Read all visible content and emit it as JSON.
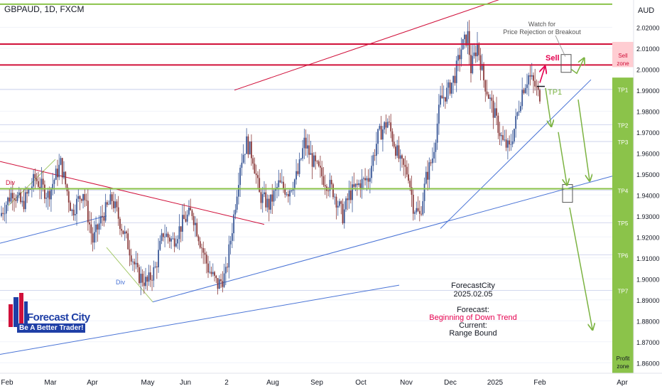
{
  "header": {
    "symbol_line": "GBPAUD, 1D, FXCM",
    "currency": "AUD"
  },
  "brand": {
    "name": "Forecast City",
    "tagline": "Be A Better Trader!"
  },
  "info_box": {
    "author": "ForecastCity",
    "date": "2025.02.05",
    "forecast_label": "Forecast:",
    "forecast_value": "Beginning of Down Trend",
    "current_label": "Current:",
    "current_value": "Range Bound"
  },
  "annotations": {
    "watch": [
      "Watch for",
      "Price Rejection or Breakout"
    ],
    "sell": "Sell",
    "tp1": "TP1",
    "div_top": "Div",
    "div_bottom": "Div",
    "sell_zone": [
      "Sell",
      "zone"
    ],
    "profit_zone": [
      "Profit",
      "zone"
    ]
  },
  "colors": {
    "green_zone": "#8bc34a",
    "sell_zone": "#ffcdd2",
    "red_line": "#d0103a",
    "green_line": "#8bc34a",
    "blue_line": "#4a74d6",
    "up_candle": "#3c5a99",
    "down_candle": "#8a3a3a",
    "arrow_green": "#7cb342",
    "arrow_red": "#e5004f"
  },
  "chart_data": {
    "type": "candlestick",
    "y_axis": {
      "range": [
        1.855,
        2.033
      ],
      "ticks": [
        "2.02000",
        "2.01000",
        "2.00000",
        "1.99000",
        "1.98000",
        "1.97000",
        "1.96000",
        "1.95000",
        "1.94000",
        "1.93000",
        "1.92000",
        "1.91000",
        "1.90000",
        "1.89000",
        "1.88000",
        "1.87000",
        "1.86000"
      ]
    },
    "x_axis": {
      "labels": [
        "Feb",
        "Mar",
        "Apr",
        "May",
        "Jun",
        "2",
        "Aug",
        "Sep",
        "Oct",
        "Nov",
        "Dec",
        "2025",
        "Feb",
        "Apr"
      ]
    },
    "horizontal_levels": [
      {
        "name": "resistance-upper",
        "value": 2.012,
        "color": "red"
      },
      {
        "name": "resistance-lower",
        "value": 2.002,
        "color": "red"
      },
      {
        "name": "top-green",
        "value": 2.031,
        "color": "green"
      },
      {
        "name": "support-green",
        "value": 1.943,
        "color": "green"
      }
    ],
    "targets": [
      {
        "label": "TP1",
        "value": 1.9905
      },
      {
        "label": "TP2",
        "value": 1.9735
      },
      {
        "label": "TP3",
        "value": 1.9655
      },
      {
        "label": "TP4",
        "value": 1.9423
      },
      {
        "label": "TP5",
        "value": 1.9268
      },
      {
        "label": "TP6",
        "value": 1.9115
      },
      {
        "label": "TP7",
        "value": 1.8945
      }
    ],
    "waypoints": [
      [
        0,
        1.93
      ],
      [
        8,
        1.942
      ],
      [
        14,
        1.935
      ],
      [
        22,
        1.948
      ],
      [
        30,
        1.94
      ],
      [
        38,
        1.955
      ],
      [
        45,
        1.932
      ],
      [
        52,
        1.942
      ],
      [
        58,
        1.918
      ],
      [
        64,
        1.93
      ],
      [
        70,
        1.938
      ],
      [
        76,
        1.925
      ],
      [
        82,
        1.912
      ],
      [
        86,
        1.902
      ],
      [
        92,
        1.898
      ],
      [
        97,
        1.905
      ],
      [
        102,
        1.922
      ],
      [
        108,
        1.918
      ],
      [
        115,
        1.928
      ],
      [
        120,
        1.932
      ],
      [
        125,
        1.918
      ],
      [
        130,
        1.905
      ],
      [
        136,
        1.897
      ],
      [
        141,
        1.902
      ],
      [
        146,
        1.93
      ],
      [
        150,
        1.955
      ],
      [
        154,
        1.965
      ],
      [
        158,
        1.958
      ],
      [
        162,
        1.94
      ],
      [
        168,
        1.935
      ],
      [
        174,
        1.945
      ],
      [
        180,
        1.942
      ],
      [
        186,
        1.95
      ],
      [
        190,
        1.965
      ],
      [
        196,
        1.955
      ],
      [
        202,
        1.948
      ],
      [
        208,
        1.942
      ],
      [
        214,
        1.93
      ],
      [
        218,
        1.94
      ],
      [
        224,
        1.945
      ],
      [
        230,
        1.948
      ],
      [
        236,
        1.968
      ],
      [
        242,
        1.975
      ],
      [
        246,
        1.965
      ],
      [
        250,
        1.955
      ],
      [
        255,
        1.95
      ],
      [
        258,
        1.935
      ],
      [
        262,
        1.93
      ],
      [
        266,
        1.948
      ],
      [
        270,
        1.958
      ],
      [
        275,
        1.985
      ],
      [
        280,
        1.99
      ],
      [
        284,
        1.997
      ],
      [
        288,
        2.01
      ],
      [
        292,
        2.016
      ],
      [
        294,
        2.0
      ],
      [
        298,
        2.012
      ],
      [
        302,
        1.995
      ],
      [
        306,
        1.985
      ],
      [
        310,
        1.975
      ],
      [
        314,
        1.965
      ],
      [
        318,
        1.962
      ],
      [
        322,
        1.975
      ],
      [
        326,
        1.99
      ],
      [
        330,
        1.997
      ],
      [
        334,
        1.992
      ],
      [
        336,
        1.988
      ]
    ],
    "n_bars": 337
  }
}
